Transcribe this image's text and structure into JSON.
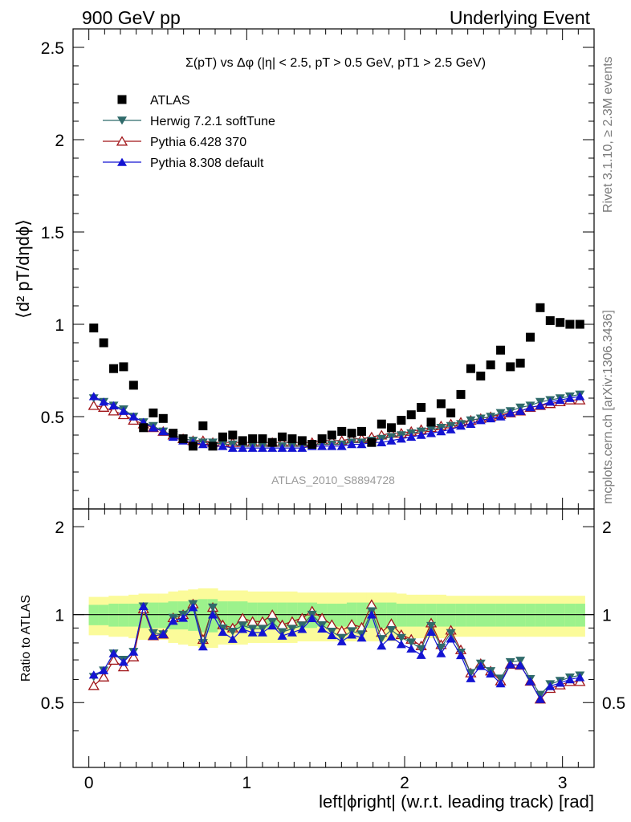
{
  "header": {
    "left": "900 GeV pp",
    "right": "Underlying Event"
  },
  "side_text": {
    "rivet": "Rivet 3.1.10, ≥ 2.3M events",
    "mcplots": "mcplots.cern.ch [arXiv:1306.3436]"
  },
  "chart_data": {
    "type": "scatter",
    "title": "Σ(pT) vs Δφ (|η| < 2.5, pT > 0.5 GeV, pT1 > 2.5 GeV)",
    "watermark": "ATLAS_2010_S8894728",
    "xlabel": "left|ϕright| (w.r.t. leading track) [rad]",
    "ylabel": "⟨d² pT/dηdϕ⟩",
    "ratio_ylabel": "Ratio to ATLAS",
    "xlim": [
      -0.1,
      3.2
    ],
    "ylim": [
      0,
      2.6
    ],
    "ratio_ylim": [
      0.3,
      2.3
    ],
    "grid": false,
    "legend_position": "top-left",
    "x_ticks": [
      "0",
      "1",
      "2",
      "3"
    ],
    "y_ticks": [
      "0.5",
      "1",
      "1.5",
      "2",
      "2.5"
    ],
    "ratio_y_ticks": [
      "0.5",
      "1",
      "2"
    ],
    "x": [
      0.031,
      0.094,
      0.157,
      0.22,
      0.283,
      0.346,
      0.408,
      0.471,
      0.534,
      0.597,
      0.66,
      0.723,
      0.785,
      0.848,
      0.911,
      0.974,
      1.037,
      1.1,
      1.162,
      1.225,
      1.288,
      1.351,
      1.414,
      1.477,
      1.539,
      1.602,
      1.665,
      1.728,
      1.791,
      1.854,
      1.916,
      1.979,
      2.042,
      2.105,
      2.168,
      2.231,
      2.293,
      2.356,
      2.419,
      2.482,
      2.545,
      2.608,
      2.67,
      2.733,
      2.796,
      2.859,
      2.922,
      2.985,
      3.047,
      3.11
    ],
    "series": [
      {
        "name": "ATLAS",
        "color": "#000000",
        "marker": "square",
        "values": [
          0.98,
          0.9,
          0.76,
          0.77,
          0.67,
          0.44,
          0.52,
          0.49,
          0.41,
          0.38,
          0.34,
          0.45,
          0.34,
          0.39,
          0.4,
          0.37,
          0.38,
          0.38,
          0.36,
          0.39,
          0.38,
          0.37,
          0.35,
          0.38,
          0.4,
          0.42,
          0.41,
          0.42,
          0.36,
          0.46,
          0.44,
          0.48,
          0.51,
          0.55,
          0.47,
          0.57,
          0.52,
          0.62,
          0.76,
          0.72,
          0.78,
          0.86,
          0.77,
          0.79,
          0.93,
          1.09,
          1.02,
          1.01,
          1.0,
          1.0
        ]
      },
      {
        "name": "Herwig 7.2.1 softTune",
        "color": "#2f6a6a",
        "marker": "triangle-down",
        "values": [
          0.6,
          0.58,
          0.56,
          0.54,
          0.5,
          0.47,
          0.45,
          0.42,
          0.4,
          0.38,
          0.37,
          0.36,
          0.36,
          0.35,
          0.35,
          0.34,
          0.34,
          0.34,
          0.34,
          0.34,
          0.34,
          0.34,
          0.35,
          0.35,
          0.35,
          0.35,
          0.36,
          0.36,
          0.37,
          0.38,
          0.39,
          0.4,
          0.41,
          0.42,
          0.43,
          0.44,
          0.45,
          0.46,
          0.48,
          0.49,
          0.5,
          0.52,
          0.53,
          0.55,
          0.56,
          0.58,
          0.59,
          0.6,
          0.61,
          0.62
        ]
      },
      {
        "name": "Pythia 6.428 370",
        "color": "#a01418",
        "marker": "triangle-open",
        "values": [
          0.56,
          0.55,
          0.53,
          0.51,
          0.48,
          0.46,
          0.44,
          0.42,
          0.4,
          0.38,
          0.37,
          0.37,
          0.36,
          0.36,
          0.36,
          0.36,
          0.36,
          0.36,
          0.36,
          0.36,
          0.36,
          0.36,
          0.36,
          0.37,
          0.37,
          0.37,
          0.38,
          0.38,
          0.39,
          0.4,
          0.41,
          0.41,
          0.42,
          0.43,
          0.44,
          0.45,
          0.46,
          0.47,
          0.48,
          0.49,
          0.5,
          0.51,
          0.52,
          0.53,
          0.55,
          0.56,
          0.57,
          0.58,
          0.59,
          0.59
        ]
      },
      {
        "name": "Pythia 8.308 default",
        "color": "#1414d2",
        "marker": "triangle-up",
        "values": [
          0.61,
          0.58,
          0.56,
          0.53,
          0.5,
          0.47,
          0.44,
          0.42,
          0.39,
          0.37,
          0.36,
          0.35,
          0.34,
          0.34,
          0.33,
          0.33,
          0.33,
          0.33,
          0.33,
          0.33,
          0.33,
          0.33,
          0.34,
          0.34,
          0.34,
          0.34,
          0.35,
          0.35,
          0.36,
          0.36,
          0.37,
          0.38,
          0.39,
          0.4,
          0.41,
          0.42,
          0.43,
          0.45,
          0.46,
          0.48,
          0.49,
          0.5,
          0.52,
          0.53,
          0.55,
          0.56,
          0.58,
          0.59,
          0.6,
          0.61
        ]
      }
    ],
    "ratio_band": {
      "inner_color": "#9cf28c",
      "outer_color": "#fbfb9a",
      "inner_halfwidth": [
        0.08,
        0.08,
        0.09,
        0.09,
        0.09,
        0.1,
        0.1,
        0.1,
        0.11,
        0.11,
        0.12,
        0.13,
        0.13,
        0.11,
        0.11,
        0.11,
        0.1,
        0.1,
        0.1,
        0.1,
        0.1,
        0.1,
        0.1,
        0.09,
        0.09,
        0.09,
        0.1,
        0.1,
        0.1,
        0.1,
        0.1,
        0.09,
        0.09,
        0.09,
        0.09,
        0.09,
        0.09,
        0.09,
        0.09,
        0.09,
        0.09,
        0.09,
        0.09,
        0.09,
        0.09,
        0.09,
        0.09,
        0.09,
        0.09,
        0.09
      ],
      "outer_halfwidth": [
        0.15,
        0.15,
        0.16,
        0.16,
        0.17,
        0.18,
        0.18,
        0.18,
        0.2,
        0.21,
        0.22,
        0.23,
        0.23,
        0.21,
        0.21,
        0.21,
        0.2,
        0.2,
        0.2,
        0.2,
        0.2,
        0.19,
        0.19,
        0.19,
        0.19,
        0.19,
        0.19,
        0.19,
        0.19,
        0.19,
        0.19,
        0.18,
        0.17,
        0.17,
        0.17,
        0.17,
        0.16,
        0.16,
        0.16,
        0.16,
        0.16,
        0.16,
        0.16,
        0.16,
        0.16,
        0.16,
        0.16,
        0.16,
        0.16,
        0.16
      ]
    }
  }
}
